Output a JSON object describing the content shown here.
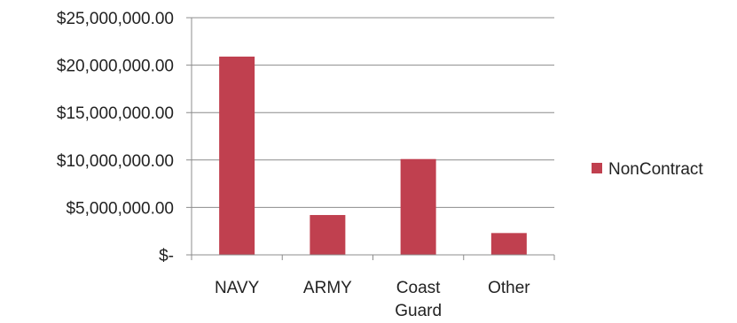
{
  "chart_data": {
    "type": "bar",
    "categories": [
      "NAVY",
      "ARMY",
      "Coast Guard",
      "Other"
    ],
    "category_label_lines": [
      [
        "NAVY"
      ],
      [
        "ARMY"
      ],
      [
        "Coast",
        "Guard"
      ],
      [
        "Other"
      ]
    ],
    "series": [
      {
        "name": "NonContract",
        "values": [
          20900000,
          4200000,
          10100000,
          2300000
        ],
        "color": "#c0404f"
      }
    ],
    "ylim": [
      0,
      25000000
    ],
    "yticks": [
      0,
      5000000,
      10000000,
      15000000,
      20000000,
      25000000
    ],
    "ytick_labels": [
      "$-",
      "$5,000,000.00",
      "$10,000,000.00",
      "$15,000,000.00",
      "$20,000,000.00",
      "$25,000,000.00"
    ],
    "grid": true,
    "legend": "right",
    "title": "",
    "xlabel": "",
    "ylabel": ""
  },
  "colors": {
    "bar": "#c0404f",
    "grid": "#8c8c8c",
    "text": "#222222"
  }
}
